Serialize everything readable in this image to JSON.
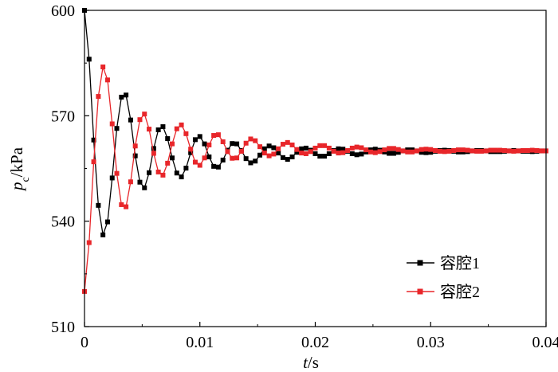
{
  "chart_data": {
    "type": "line",
    "title": "",
    "xlabel": {
      "var": "t",
      "unit": "/s"
    },
    "ylabel": {
      "var": "p",
      "sub": "c",
      "unit": "/kPa"
    },
    "xlim": [
      0,
      0.04
    ],
    "ylim": [
      510,
      600
    ],
    "xticks": [
      0,
      0.01,
      0.02,
      0.03,
      0.04
    ],
    "xtick_labels": [
      "0",
      "0.01",
      "0.02",
      "0.03",
      "0.04"
    ],
    "yticks": [
      510,
      540,
      570,
      600
    ],
    "ytick_labels": [
      "510",
      "540",
      "570",
      "600"
    ],
    "grid": false,
    "legend_position": "bottom-right",
    "series": [
      {
        "name": "容腔1",
        "color": "#000000",
        "marker": "square",
        "x": [
          0.0,
          0.0004,
          0.0008,
          0.0012,
          0.0016,
          0.002,
          0.0024,
          0.0028,
          0.0032,
          0.0036,
          0.004,
          0.0044,
          0.0048,
          0.0052,
          0.0056,
          0.006,
          0.0064,
          0.0068,
          0.0072,
          0.0076,
          0.008,
          0.0084,
          0.0088,
          0.0092,
          0.0096,
          0.01,
          0.0104,
          0.0108,
          0.0112,
          0.0116,
          0.012,
          0.0124,
          0.0128,
          0.0132,
          0.0136,
          0.014,
          0.0144,
          0.0148,
          0.0152,
          0.0156,
          0.016,
          0.0164,
          0.0168,
          0.0172,
          0.0176,
          0.018,
          0.0184,
          0.0188,
          0.0192,
          0.0196,
          0.02,
          0.0204,
          0.0208,
          0.0212,
          0.0216,
          0.022,
          0.0224,
          0.0228,
          0.0232,
          0.0236,
          0.024,
          0.0244,
          0.0248,
          0.0252,
          0.0256,
          0.026,
          0.0264,
          0.0268,
          0.0272,
          0.0276,
          0.028,
          0.0284,
          0.0288,
          0.0292,
          0.0296,
          0.03,
          0.0304,
          0.0308,
          0.0312,
          0.0316,
          0.032,
          0.0324,
          0.0328,
          0.0332,
          0.0336,
          0.034,
          0.0344,
          0.0348,
          0.0352,
          0.0356,
          0.036,
          0.0364,
          0.0368,
          0.0372,
          0.0376,
          0.038,
          0.0384,
          0.0388,
          0.0392,
          0.0396,
          0.04
        ],
        "y": [
          600.0,
          586.1,
          563.1,
          544.5,
          536.1,
          539.8,
          552.3,
          566.4,
          575.3,
          575.9,
          568.8,
          558.6,
          551.1,
          549.5,
          553.8,
          560.7,
          566.0,
          566.9,
          563.5,
          558.0,
          553.7,
          552.6,
          555.1,
          559.5,
          563.2,
          564.1,
          562.0,
          558.3,
          555.6,
          555.4,
          557.4,
          560.2,
          562.1,
          562.0,
          560.1,
          557.8,
          556.6,
          557.1,
          558.8,
          560.6,
          561.4,
          560.9,
          559.4,
          558.1,
          557.6,
          558.3,
          559.6,
          560.6,
          560.8,
          560.2,
          559.2,
          558.5,
          558.5,
          559.2,
          560.1,
          560.6,
          560.5,
          559.9,
          559.2,
          558.9,
          559.1,
          559.7,
          560.3,
          560.5,
          560.2,
          559.7,
          559.3,
          559.3,
          559.6,
          560.0,
          560.3,
          560.3,
          560.0,
          559.6,
          559.5,
          559.6,
          559.9,
          560.1,
          560.2,
          560.1,
          559.9,
          559.7,
          559.7,
          559.8,
          560.0,
          560.1,
          560.1,
          560.0,
          559.8,
          559.8,
          559.8,
          559.9,
          560.0,
          560.1,
          560.0,
          559.9,
          559.9,
          559.8,
          559.9,
          560.0,
          560.0
        ]
      },
      {
        "name": "容腔2",
        "color": "#e8262a",
        "marker": "square",
        "x": [
          0.0,
          0.0004,
          0.0008,
          0.0012,
          0.0016,
          0.002,
          0.0024,
          0.0028,
          0.0032,
          0.0036,
          0.004,
          0.0044,
          0.0048,
          0.0052,
          0.0056,
          0.006,
          0.0064,
          0.0068,
          0.0072,
          0.0076,
          0.008,
          0.0084,
          0.0088,
          0.0092,
          0.0096,
          0.01,
          0.0104,
          0.0108,
          0.0112,
          0.0116,
          0.012,
          0.0124,
          0.0128,
          0.0132,
          0.0136,
          0.014,
          0.0144,
          0.0148,
          0.0152,
          0.0156,
          0.016,
          0.0164,
          0.0168,
          0.0172,
          0.0176,
          0.018,
          0.0184,
          0.0188,
          0.0192,
          0.0196,
          0.02,
          0.0204,
          0.0208,
          0.0212,
          0.0216,
          0.022,
          0.0224,
          0.0228,
          0.0232,
          0.0236,
          0.024,
          0.0244,
          0.0248,
          0.0252,
          0.0256,
          0.026,
          0.0264,
          0.0268,
          0.0272,
          0.0276,
          0.028,
          0.0284,
          0.0288,
          0.0292,
          0.0296,
          0.03,
          0.0304,
          0.0308,
          0.0312,
          0.0316,
          0.032,
          0.0324,
          0.0328,
          0.0332,
          0.0336,
          0.034,
          0.0344,
          0.0348,
          0.0352,
          0.0356,
          0.036,
          0.0364,
          0.0368,
          0.0372,
          0.0376,
          0.038,
          0.0384,
          0.0388,
          0.0392,
          0.0396,
          0.04
        ],
        "y": [
          520.0,
          533.9,
          556.9,
          575.5,
          583.9,
          580.2,
          567.7,
          553.6,
          544.7,
          544.1,
          551.2,
          561.4,
          568.9,
          570.5,
          566.2,
          559.3,
          554.0,
          553.1,
          556.5,
          562.0,
          566.3,
          567.4,
          564.9,
          560.5,
          556.8,
          555.9,
          558.0,
          561.7,
          564.4,
          564.6,
          562.6,
          559.8,
          557.9,
          558.0,
          559.9,
          562.2,
          563.4,
          562.9,
          561.2,
          559.4,
          558.6,
          559.1,
          560.6,
          561.9,
          562.4,
          561.7,
          560.4,
          559.4,
          559.2,
          559.8,
          560.8,
          561.5,
          561.5,
          560.8,
          559.9,
          559.4,
          559.5,
          560.1,
          560.8,
          561.1,
          560.9,
          560.3,
          559.7,
          559.5,
          559.8,
          560.3,
          560.7,
          560.7,
          560.4,
          560.0,
          559.7,
          559.7,
          560.0,
          560.4,
          560.5,
          560.4,
          560.1,
          559.9,
          559.8,
          559.9,
          560.1,
          560.3,
          560.3,
          560.2,
          560.0,
          559.9,
          559.9,
          560.0,
          560.2,
          560.2,
          560.2,
          560.1,
          560.0,
          559.9,
          560.0,
          560.1,
          560.1,
          560.2,
          560.1,
          560.0,
          560.0
        ]
      }
    ]
  }
}
